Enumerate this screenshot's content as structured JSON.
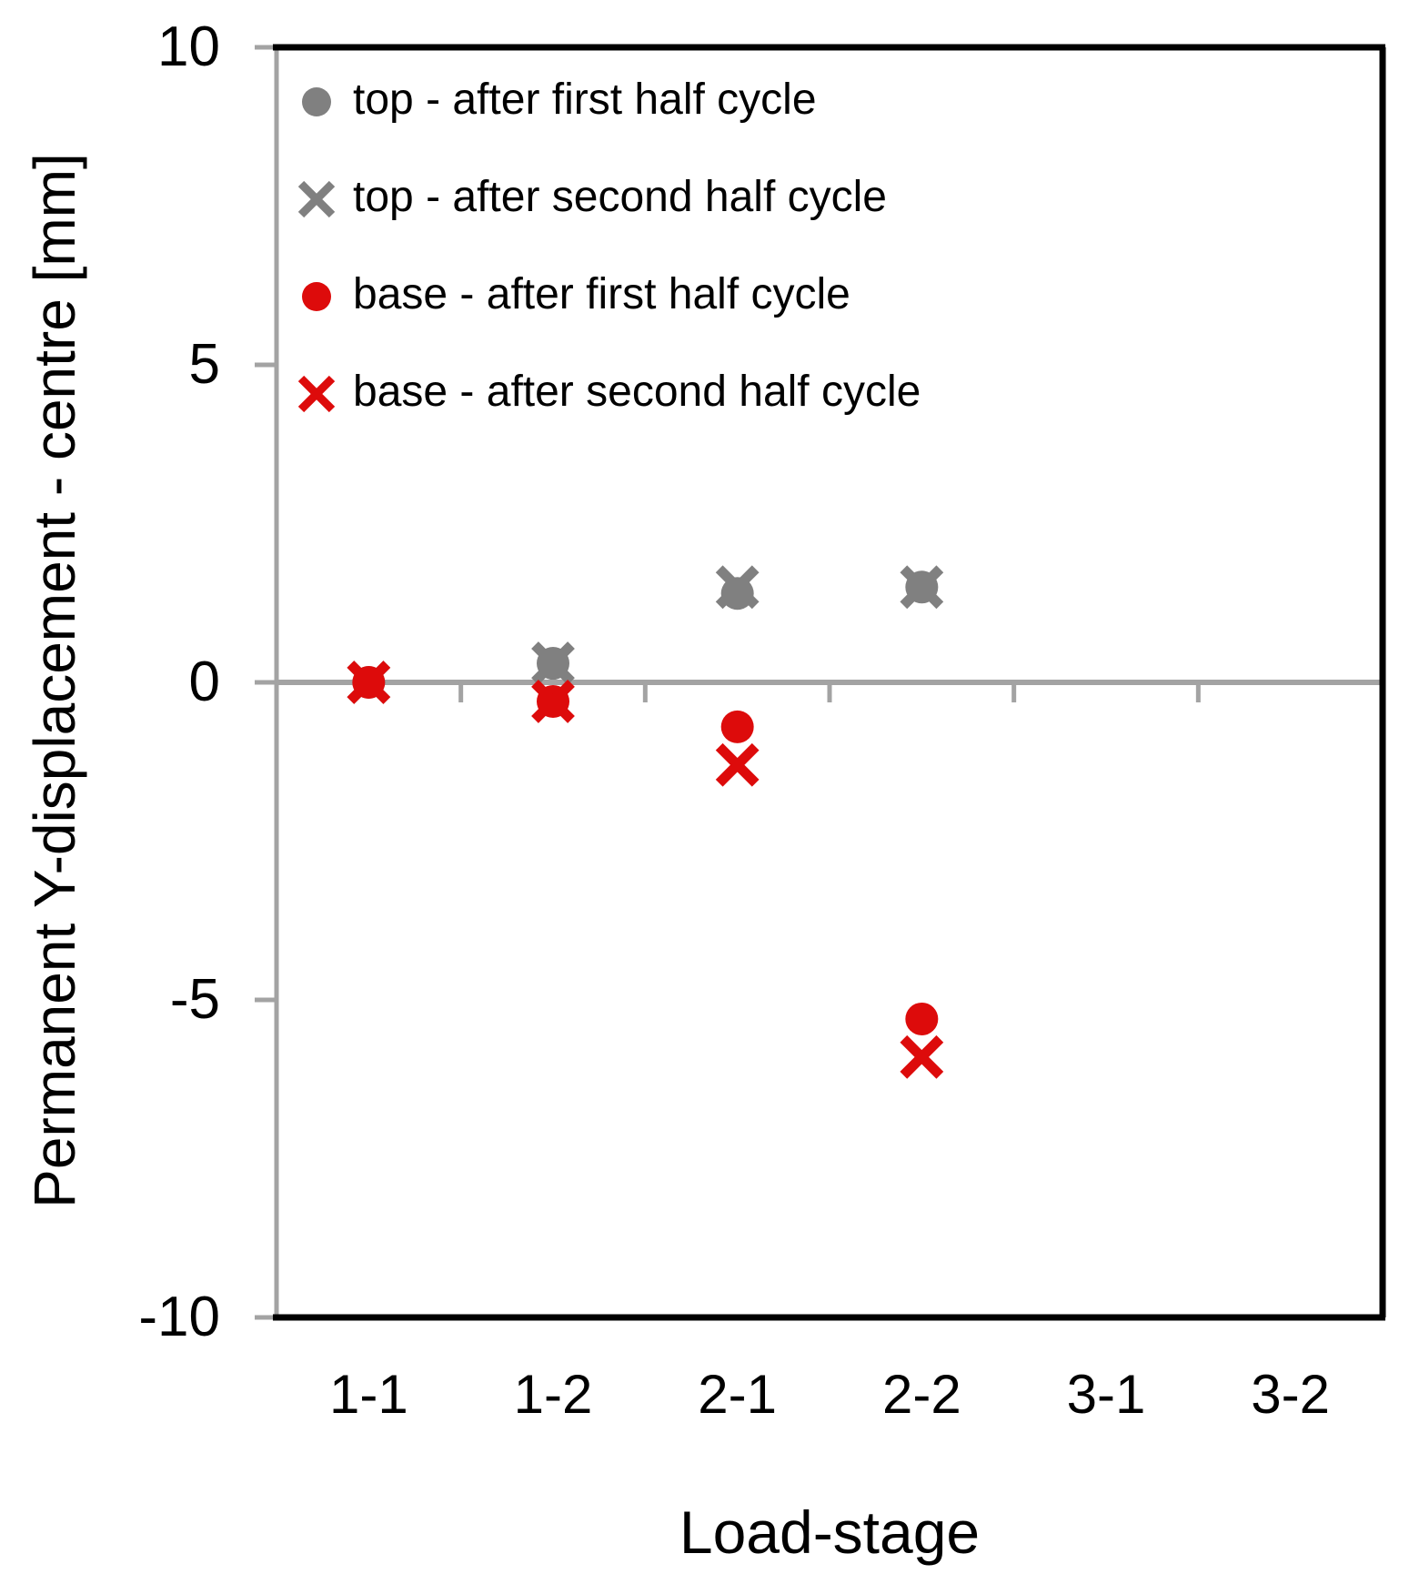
{
  "chart_data": {
    "type": "scatter",
    "title": "",
    "xlabel": "Load-stage",
    "ylabel": "Permanent Y-displacement - centre [mm]",
    "categories": [
      "1-1",
      "1-2",
      "2-1",
      "2-2",
      "3-1",
      "3-2"
    ],
    "ylim": [
      -10,
      10
    ],
    "yticks": [
      10,
      5,
      0,
      -5,
      -10
    ],
    "grid": false,
    "zero_line": true,
    "legend_position": "top-left-inside",
    "axis_color": "#A3A3A3",
    "border_color": "#000000",
    "series": [
      {
        "name": "top - after first half cycle",
        "marker": "circle",
        "color": "#808080",
        "values": [
          0.0,
          0.3,
          1.4,
          1.5,
          null,
          null
        ]
      },
      {
        "name": "top - after second half cycle",
        "marker": "x",
        "color": "#808080",
        "values": [
          0.0,
          0.3,
          1.5,
          1.5,
          null,
          null
        ]
      },
      {
        "name": "base - after first half cycle",
        "marker": "circle",
        "color": "#DD0B0B",
        "values": [
          0.0,
          -0.3,
          -0.7,
          -5.3,
          null,
          null
        ]
      },
      {
        "name": "base - after second half cycle",
        "marker": "x",
        "color": "#DD0B0B",
        "values": [
          0.0,
          -0.3,
          -1.3,
          -5.9,
          null,
          null
        ]
      }
    ]
  }
}
